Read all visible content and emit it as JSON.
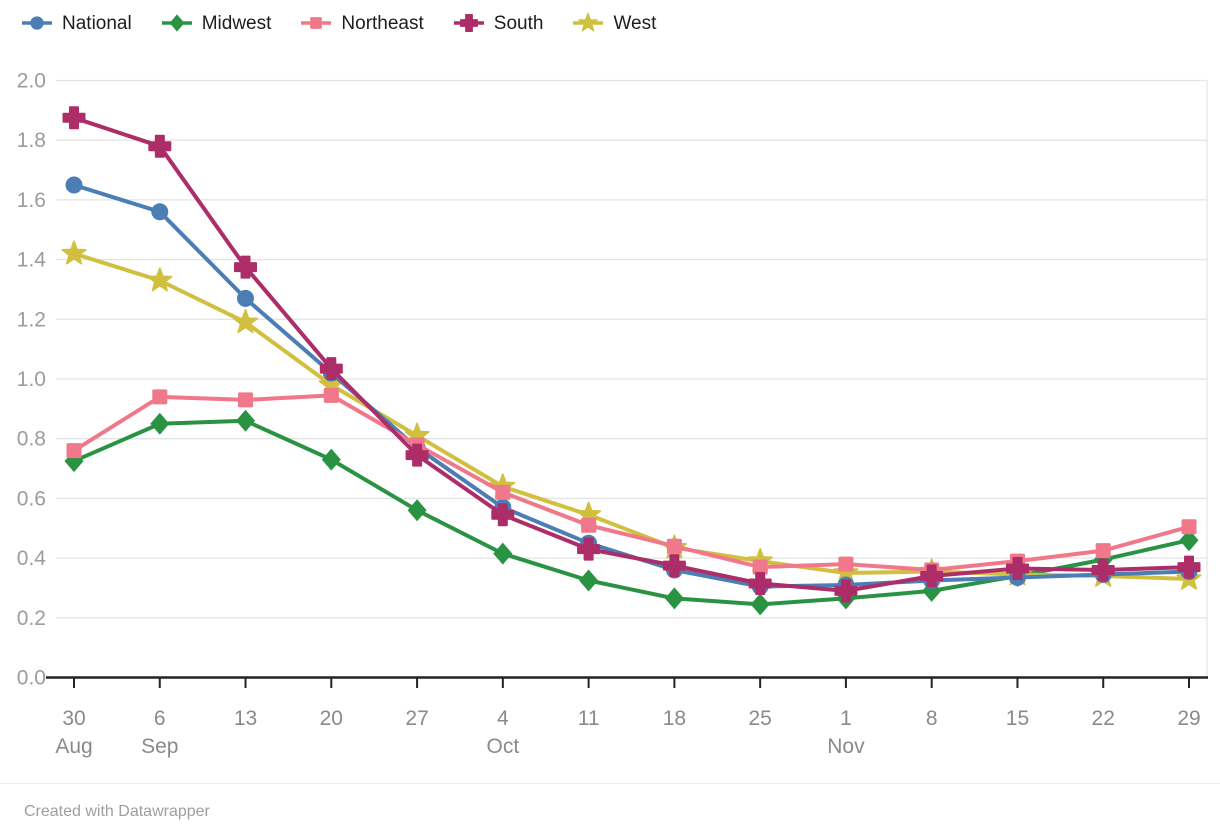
{
  "footer": {
    "credit": "Created with Datawrapper"
  },
  "chart_data": {
    "type": "line",
    "title": "",
    "xlabel": "",
    "ylabel": "",
    "ylim": [
      0.0,
      2.0
    ],
    "grid": true,
    "legend_position": "top",
    "x_labels": [
      "30",
      "6",
      "13",
      "20",
      "27",
      "4",
      "11",
      "18",
      "25",
      "1",
      "8",
      "15",
      "22",
      "29"
    ],
    "month_labels": [
      {
        "label": "Aug",
        "index": 0
      },
      {
        "label": "Sep",
        "index": 1
      },
      {
        "label": "Oct",
        "index": 5
      },
      {
        "label": "Nov",
        "index": 9
      }
    ],
    "y_ticks": [
      "0.0",
      "0.2",
      "0.4",
      "0.6",
      "0.8",
      "1.0",
      "1.2",
      "1.4",
      "1.6",
      "1.8",
      "2.0"
    ],
    "series": [
      {
        "name": "National",
        "color": "#4a7eb5",
        "marker": "circle",
        "values": [
          1.65,
          1.56,
          1.27,
          1.02,
          0.77,
          0.57,
          0.45,
          0.36,
          0.305,
          0.31,
          0.325,
          0.335,
          0.345,
          0.355
        ]
      },
      {
        "name": "Midwest",
        "color": "#2a9343",
        "marker": "diamond",
        "values": [
          0.725,
          0.85,
          0.86,
          0.73,
          0.56,
          0.415,
          0.325,
          0.265,
          0.245,
          0.265,
          0.29,
          0.34,
          0.395,
          0.46
        ]
      },
      {
        "name": "Northeast",
        "color": "#f0788a",
        "marker": "square",
        "values": [
          0.76,
          0.94,
          0.93,
          0.945,
          0.78,
          0.62,
          0.51,
          0.44,
          0.37,
          0.38,
          0.36,
          0.39,
          0.425,
          0.505
        ]
      },
      {
        "name": "South",
        "color": "#ad2d68",
        "marker": "cross",
        "values": [
          1.875,
          1.78,
          1.375,
          1.035,
          0.745,
          0.545,
          0.43,
          0.375,
          0.315,
          0.29,
          0.34,
          0.365,
          0.36,
          0.37
        ]
      },
      {
        "name": "West",
        "color": "#d1bf3f",
        "marker": "star",
        "values": [
          1.42,
          1.33,
          1.19,
          0.98,
          0.81,
          0.64,
          0.545,
          0.435,
          0.39,
          0.35,
          0.355,
          0.345,
          0.34,
          0.33
        ]
      }
    ],
    "draw_order": [
      1,
      4,
      0,
      2,
      3
    ],
    "colors": {
      "gridline": "#e4e4e4",
      "axis": "#242424",
      "y_tick_label": "#9c9c9c",
      "x_tick_label": "#8a8a8a",
      "legend_text": "#1d1d1d"
    }
  }
}
